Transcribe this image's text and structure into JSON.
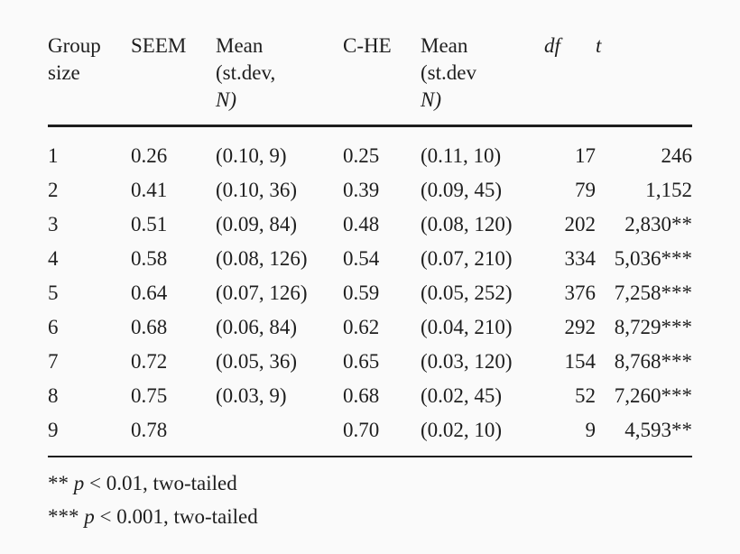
{
  "table": {
    "headers": {
      "group_size": [
        "Group",
        "size"
      ],
      "seem": "SEEM",
      "seem_mean": [
        "Mean",
        "(st.dev,",
        "N)"
      ],
      "che": "C-HE",
      "che_mean": [
        "Mean",
        "(st.dev",
        "N)"
      ],
      "df": "df",
      "t": "t"
    },
    "rows": [
      {
        "group": "1",
        "seem": "0.26",
        "seem_sd": "(0.10, 9)",
        "che": "0.25",
        "che_sd": "(0.11, 10)",
        "df": "17",
        "t": "246"
      },
      {
        "group": "2",
        "seem": "0.41",
        "seem_sd": "(0.10, 36)",
        "che": "0.39",
        "che_sd": "(0.09, 45)",
        "df": "79",
        "t": "1,152"
      },
      {
        "group": "3",
        "seem": "0.51",
        "seem_sd": "(0.09, 84)",
        "che": "0.48",
        "che_sd": "(0.08, 120)",
        "df": "202",
        "t": "2,830**"
      },
      {
        "group": "4",
        "seem": "0.58",
        "seem_sd": "(0.08, 126)",
        "che": "0.54",
        "che_sd": "(0.07, 210)",
        "df": "334",
        "t": "5,036***"
      },
      {
        "group": "5",
        "seem": "0.64",
        "seem_sd": "(0.07, 126)",
        "che": "0.59",
        "che_sd": "(0.05, 252)",
        "df": "376",
        "t": "7,258***"
      },
      {
        "group": "6",
        "seem": "0.68",
        "seem_sd": "(0.06, 84)",
        "che": "0.62",
        "che_sd": "(0.04, 210)",
        "df": "292",
        "t": "8,729***"
      },
      {
        "group": "7",
        "seem": "0.72",
        "seem_sd": "(0.05, 36)",
        "che": "0.65",
        "che_sd": "(0.03, 120)",
        "df": "154",
        "t": "8,768***"
      },
      {
        "group": "8",
        "seem": "0.75",
        "seem_sd": "(0.03, 9)",
        "che": "0.68",
        "che_sd": "(0.02, 45)",
        "df": "52",
        "t": "7,260***"
      },
      {
        "group": "9",
        "seem": "0.78",
        "seem_sd": "",
        "che": "0.70",
        "che_sd": "(0.02, 10)",
        "df": "9",
        "t": "4,593**"
      }
    ]
  },
  "notes": [
    {
      "stars": "**",
      "p": "p",
      "rest": " < 0.01, two-tailed"
    },
    {
      "stars": "***",
      "p": "p",
      "rest": " < 0.001, two-tailed"
    }
  ]
}
